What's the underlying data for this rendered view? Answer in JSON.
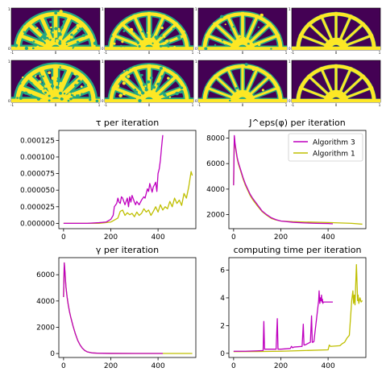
{
  "colors": {
    "algorithm3": "#bf00bf",
    "algorithm1": "#bfbf00",
    "field_background": "#440154",
    "field_structure": "#fde725",
    "field_edge": "#22a884"
  },
  "topology_panels": {
    "rows": 2,
    "cols": 4,
    "structure": "half-wheel with spokes",
    "xtick_labels": [
      "-1",
      "0",
      "1"
    ],
    "ytick_labels": [
      "1",
      "0"
    ]
  },
  "chart_data": [
    {
      "type": "line",
      "title": "τ per iteration",
      "xlabel": "",
      "ylabel": "",
      "xlim": [
        -20,
        560
      ],
      "ylim": [
        -8e-06,
        0.00014
      ],
      "xticks": [
        0,
        200,
        400
      ],
      "yticks": [
        0,
        2.5e-05,
        5e-05,
        7.5e-05,
        0.0001,
        0.000125
      ],
      "ytick_labels": [
        "0.000000",
        "0.000025",
        "0.000050",
        "0.000075",
        "0.000100",
        "0.000125"
      ],
      "series": [
        {
          "name": "Algorithm 3",
          "color": "#bf00bf",
          "x": [
            0,
            100,
            150,
            180,
            200,
            210,
            215,
            225,
            230,
            235,
            240,
            245,
            250,
            260,
            265,
            270,
            275,
            280,
            285,
            290,
            300,
            305,
            310,
            320,
            330,
            340,
            345,
            355,
            360,
            365,
            375,
            380,
            385,
            390,
            395,
            400,
            405,
            410,
            415,
            420
          ],
          "y": [
            0,
            0,
            1e-06,
            2e-06,
            6e-06,
            1.2e-05,
            2.5e-05,
            3e-05,
            3.8e-05,
            3.2e-05,
            3e-05,
            4e-05,
            3.8e-05,
            2.8e-05,
            3.3e-05,
            3.8e-05,
            2.5e-05,
            4e-05,
            3.2e-05,
            4.2e-05,
            3.2e-05,
            2.8e-05,
            3.3e-05,
            2.8e-05,
            3.5e-05,
            4e-05,
            3.8e-05,
            5.2e-05,
            4.8e-05,
            6e-05,
            4.7e-05,
            5.5e-05,
            5.8e-05,
            6.2e-05,
            4.8e-05,
            7.5e-05,
            8.2e-05,
            9.5e-05,
            0.000115,
            0.000133
          ]
        },
        {
          "name": "Algorithm 1",
          "color": "#bfbf00",
          "x": [
            0,
            150,
            200,
            230,
            240,
            250,
            260,
            270,
            280,
            290,
            300,
            310,
            320,
            330,
            340,
            350,
            360,
            370,
            380,
            390,
            400,
            410,
            420,
            430,
            440,
            450,
            460,
            470,
            480,
            490,
            500,
            510,
            520,
            530,
            540,
            545
          ],
          "y": [
            0,
            0,
            2e-06,
            8e-06,
            1.8e-05,
            2e-05,
            1.2e-05,
            1.6e-05,
            1.3e-05,
            1.5e-05,
            1e-05,
            1.7e-05,
            1.2e-05,
            1.5e-05,
            2.2e-05,
            1.7e-05,
            2e-05,
            1.2e-05,
            1.8e-05,
            2.5e-05,
            1.7e-05,
            2.8e-05,
            2e-05,
            2.5e-05,
            2.2e-05,
            3.3e-05,
            2.5e-05,
            3.8e-05,
            3e-05,
            3.5e-05,
            2.7e-05,
            4.5e-05,
            3.8e-05,
            5.5e-05,
            7.8e-05,
            7.2e-05
          ]
        }
      ]
    },
    {
      "type": "line",
      "title": "J^eps(φ) per iteration",
      "xlabel": "",
      "ylabel": "",
      "xlim": [
        -20,
        560
      ],
      "ylim": [
        900,
        8600
      ],
      "xticks": [
        0,
        200,
        400
      ],
      "yticks": [
        2000,
        4000,
        6000,
        8000
      ],
      "legend": "top-right",
      "series": [
        {
          "name": "Algorithm 3",
          "color": "#bf00bf",
          "x": [
            0,
            3,
            6,
            10,
            15,
            20,
            30,
            40,
            50,
            60,
            70,
            80,
            100,
            120,
            140,
            160,
            180,
            200,
            250,
            300,
            350,
            400,
            420
          ],
          "y": [
            4300,
            8200,
            7600,
            7100,
            6500,
            6100,
            5500,
            4900,
            4400,
            4000,
            3600,
            3300,
            2800,
            2300,
            2000,
            1750,
            1600,
            1500,
            1400,
            1350,
            1320,
            1300,
            1280
          ]
        },
        {
          "name": "Algorithm 1",
          "color": "#bfbf00",
          "x": [
            0,
            3,
            6,
            10,
            15,
            20,
            30,
            40,
            50,
            60,
            70,
            80,
            100,
            120,
            140,
            160,
            180,
            200,
            230,
            250,
            300,
            350,
            400,
            450,
            500,
            545
          ],
          "y": [
            4300,
            8100,
            7500,
            7000,
            6400,
            6000,
            5400,
            4800,
            4300,
            3900,
            3500,
            3200,
            2700,
            2250,
            1950,
            1700,
            1580,
            1500,
            1470,
            1450,
            1420,
            1400,
            1380,
            1350,
            1320,
            1250
          ]
        }
      ]
    },
    {
      "type": "line",
      "title": "γ per iteration",
      "xlabel": "",
      "ylabel": "",
      "xlim": [
        -20,
        560
      ],
      "ylim": [
        -300,
        7300
      ],
      "xticks": [
        0,
        200,
        400
      ],
      "yticks": [
        0,
        2000,
        4000,
        6000
      ],
      "series": [
        {
          "name": "Algorithm 3",
          "color": "#bf00bf",
          "x": [
            0,
            3,
            6,
            10,
            15,
            20,
            25,
            30,
            40,
            50,
            60,
            70,
            80,
            90,
            100,
            120,
            150,
            200,
            300,
            420
          ],
          "y": [
            4300,
            6900,
            6200,
            5100,
            4300,
            3700,
            3200,
            2800,
            2100,
            1500,
            1000,
            650,
            400,
            230,
            130,
            50,
            20,
            10,
            5,
            5
          ]
        },
        {
          "name": "Algorithm 1",
          "color": "#bfbf00",
          "x": [
            0,
            3,
            6,
            10,
            15,
            20,
            25,
            30,
            40,
            50,
            60,
            70,
            80,
            90,
            100,
            120,
            150,
            200,
            300,
            400,
            545
          ],
          "y": [
            4300,
            6900,
            6200,
            5100,
            4300,
            3700,
            3200,
            2800,
            2100,
            1500,
            1000,
            650,
            400,
            230,
            130,
            50,
            20,
            10,
            5,
            5,
            5
          ]
        }
      ]
    },
    {
      "type": "line",
      "title": "computing time per iteration",
      "xlabel": "",
      "ylabel": "",
      "xlim": [
        -20,
        560
      ],
      "ylim": [
        -0.3,
        6.9
      ],
      "xticks": [
        0,
        200,
        400
      ],
      "yticks": [
        0,
        2,
        4,
        6
      ],
      "series": [
        {
          "name": "Algorithm 3",
          "color": "#bf00bf",
          "x": [
            0,
            50,
            100,
            125,
            128,
            131,
            135,
            180,
            185,
            188,
            192,
            200,
            240,
            245,
            250,
            255,
            290,
            295,
            298,
            302,
            325,
            330,
            333,
            336,
            340,
            360,
            362,
            365,
            368,
            370,
            372,
            374,
            376,
            378,
            380,
            420
          ],
          "y": [
            0.15,
            0.15,
            0.18,
            0.2,
            2.3,
            0.3,
            0.3,
            0.3,
            2.5,
            0.3,
            0.3,
            0.3,
            0.35,
            0.5,
            0.4,
            0.45,
            0.5,
            2.1,
            0.6,
            0.6,
            0.8,
            2.7,
            0.8,
            0.8,
            0.85,
            3.8,
            4.5,
            3.6,
            4.0,
            3.8,
            4.2,
            3.7,
            3.9,
            3.6,
            3.7,
            3.7
          ]
        },
        {
          "name": "Algorithm 1",
          "color": "#bfbf00",
          "x": [
            0,
            100,
            200,
            300,
            400,
            405,
            410,
            450,
            460,
            470,
            480,
            490,
            500,
            505,
            508,
            511,
            514,
            517,
            520,
            525,
            527,
            530,
            535,
            540,
            545
          ],
          "y": [
            0.12,
            0.13,
            0.15,
            0.2,
            0.25,
            0.6,
            0.5,
            0.55,
            0.7,
            0.8,
            1.1,
            1.3,
            3.8,
            4.5,
            3.6,
            4.2,
            3.5,
            5.0,
            6.4,
            3.8,
            4.2,
            3.6,
            4.0,
            3.7,
            3.8
          ]
        }
      ]
    }
  ]
}
